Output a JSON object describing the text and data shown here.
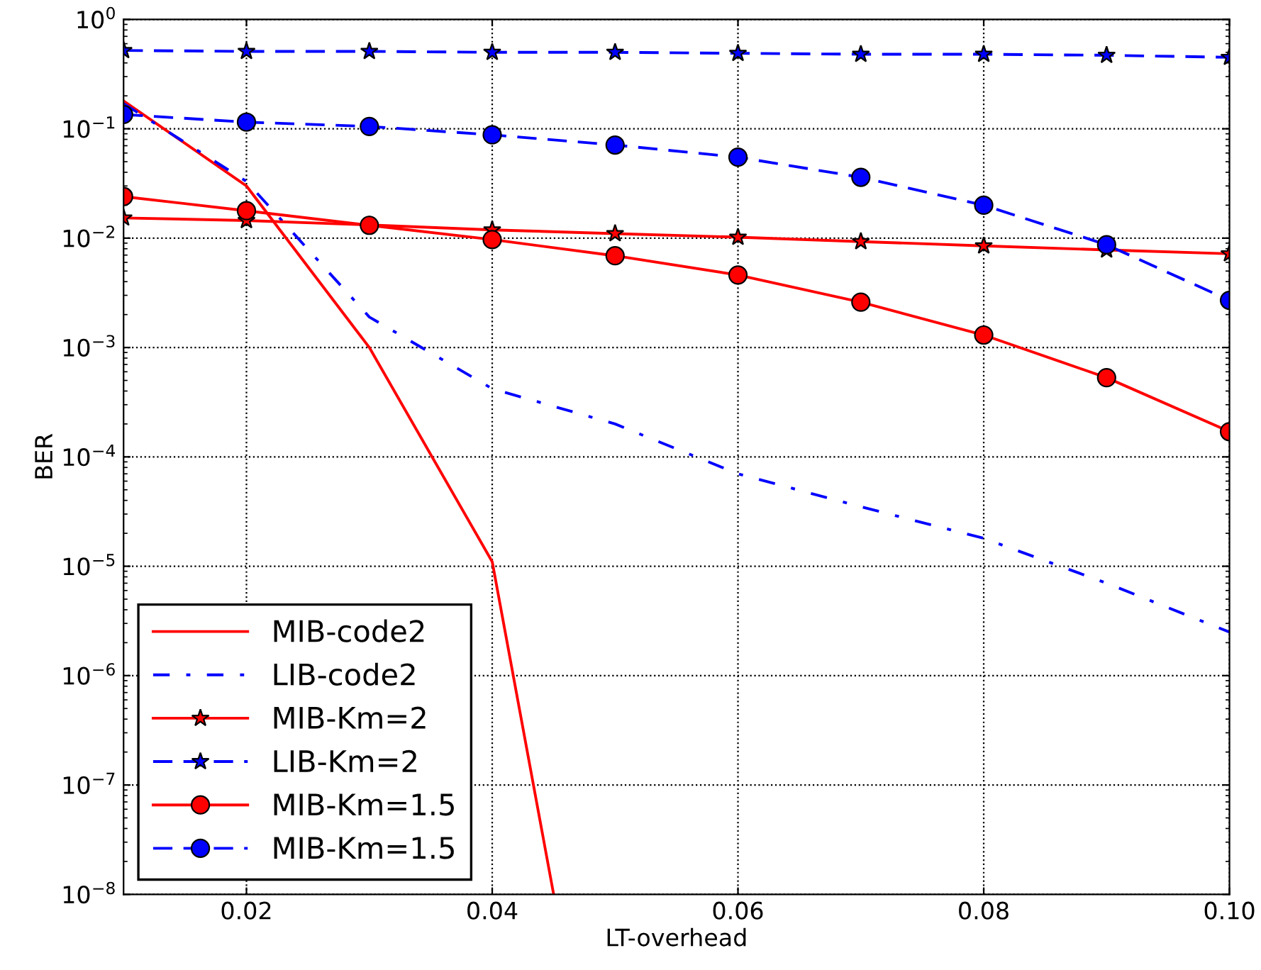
{
  "chart_data": {
    "type": "line",
    "xlabel": "LT-overhead",
    "ylabel": "BER",
    "log": "y",
    "grid": true,
    "legend": "bottom left",
    "xlim": [
      0.01,
      0.1
    ],
    "xticks": [
      0.02,
      0.04,
      0.06,
      0.08,
      {
        "value": 0.1,
        "label": "0.10"
      }
    ],
    "ylim": [
      1e-08,
      1
    ],
    "yticks": [
      {
        "value": 1e-08,
        "label": "10$^{−8}$"
      },
      {
        "value": 1e-07,
        "label": "10$^{−7}$"
      },
      {
        "value": 1e-06,
        "label": "10$^{−6}$"
      },
      {
        "value": 1e-05,
        "label": "10$^{−5}$"
      },
      {
        "value": 0.0001,
        "label": "10$^{−4}$"
      },
      {
        "value": 0.001,
        "label": "10$^{−3}$"
      },
      {
        "value": 0.01,
        "label": "10$^{−2}$"
      },
      {
        "value": 0.1,
        "label": "10$^{−1}$"
      },
      {
        "value": 1,
        "label": "10$^{0}$"
      }
    ],
    "series": [
      {
        "name": "MIB-code2",
        "color": "#ff0000",
        "marker": "none",
        "line_style": "solid",
        "x": [
          0.01,
          0.02,
          0.03,
          0.04,
          0.045
        ],
        "values": [
          0.18,
          0.03,
          0.001,
          1.1e-05,
          1e-08
        ]
      },
      {
        "name": "LIB-code2",
        "color": "#0000ff",
        "marker": "none",
        "line_style": "dashdot",
        "x": [
          0.01,
          0.02,
          0.03,
          0.04,
          0.05,
          0.06,
          0.07,
          0.08,
          0.09,
          0.1
        ],
        "values": [
          0.17,
          0.033,
          0.0019,
          0.00042,
          0.0002,
          7e-05,
          3.5e-05,
          1.8e-05,
          7e-06,
          2.5e-06
        ]
      },
      {
        "name": "MIB-Km=2",
        "color": "#ff0000",
        "marker": "star",
        "line_style": "solid",
        "x": [
          0.01,
          0.02,
          0.03,
          0.04,
          0.05,
          0.06,
          0.07,
          0.08,
          0.09,
          0.1
        ],
        "values": [
          0.0153,
          0.0145,
          0.0132,
          0.0119,
          0.011,
          0.0102,
          0.0093,
          0.0085,
          0.0078,
          0.0072
        ]
      },
      {
        "name": "LIB-Km=2",
        "color": "#0000ff",
        "marker": "star",
        "line_style": "dashed",
        "x": [
          0.01,
          0.02,
          0.03,
          0.04,
          0.05,
          0.06,
          0.07,
          0.08,
          0.09,
          0.1
        ],
        "values": [
          0.52,
          0.51,
          0.51,
          0.5,
          0.5,
          0.49,
          0.48,
          0.48,
          0.47,
          0.45
        ]
      },
      {
        "name": "MIB-Km=1.5",
        "color": "#ff0000",
        "marker": "circle",
        "line_style": "solid",
        "x": [
          0.01,
          0.02,
          0.03,
          0.04,
          0.05,
          0.06,
          0.07,
          0.08,
          0.09,
          0.1
        ],
        "values": [
          0.024,
          0.0178,
          0.0131,
          0.0097,
          0.0069,
          0.0046,
          0.0026,
          0.0013,
          0.00053,
          0.00017
        ]
      },
      {
        "name": "MIB-Km=1.5",
        "color": "#0000ff",
        "marker": "circle",
        "line_style": "dashed",
        "x": [
          0.01,
          0.02,
          0.03,
          0.04,
          0.05,
          0.06,
          0.07,
          0.08,
          0.09,
          0.1
        ],
        "values": [
          0.135,
          0.115,
          0.105,
          0.088,
          0.071,
          0.055,
          0.036,
          0.02,
          0.0087,
          0.0027
        ]
      }
    ]
  }
}
